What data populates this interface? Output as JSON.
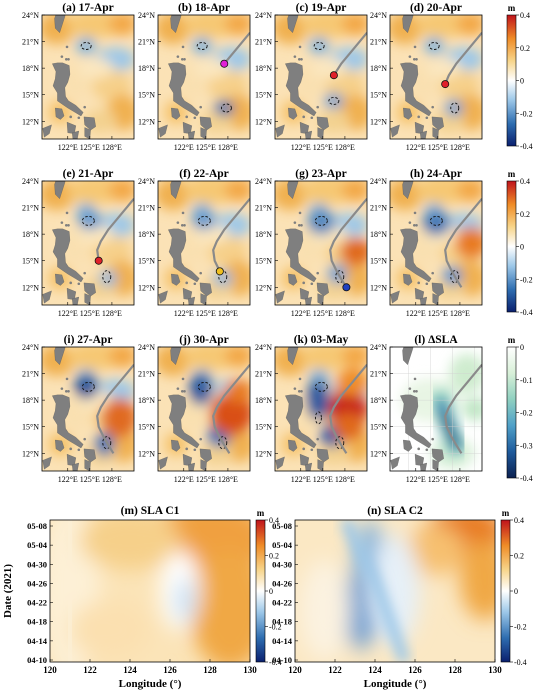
{
  "panels": [
    {
      "title": "(a) 17-Apr",
      "track_count": 0,
      "dot": null
    },
    {
      "title": "(b) 18-Apr",
      "track_count": 3,
      "dot": "#e020d8"
    },
    {
      "title": "(c) 19-Apr",
      "track_count": 4,
      "dot": "#e0202a"
    },
    {
      "title": "(d) 20-Apr",
      "track_count": 5,
      "dot": "#e0202a"
    },
    {
      "title": "(e) 21-Apr",
      "track_count": 6,
      "dot": "#e0202a"
    },
    {
      "title": "(f) 22-Apr",
      "track_count": 7,
      "dot": "#f0c020"
    },
    {
      "title": "(g) 23-Apr",
      "track_count": 9,
      "dot": "#2040c0"
    },
    {
      "title": "(h) 24-Apr",
      "track_count": 9,
      "dot": null
    },
    {
      "title": "(i) 27-Apr",
      "track_count": 9,
      "dot": null
    },
    {
      "title": "(j) 30-Apr",
      "track_count": 9,
      "dot": null
    },
    {
      "title": "(k) 03-May",
      "track_count": 9,
      "dot": null
    },
    {
      "title": "(l) ΔSLA",
      "track_count": 9,
      "dot": null
    }
  ],
  "map_axes": {
    "lat_labels": [
      "24°N",
      "21°N",
      "18°N",
      "15°N",
      "12°N"
    ],
    "lon_labels": [
      "122°E",
      "125°E",
      "128°E"
    ]
  },
  "colorbar_div": {
    "unit": "m",
    "ticks": [
      "0.4",
      "0.2",
      "0",
      "-0.2",
      "-0.4"
    ]
  },
  "colorbar_seq": {
    "unit": "m",
    "ticks": [
      "0",
      "-0.1",
      "-0.2",
      "-0.3",
      "-0.4"
    ]
  },
  "hovmoller": {
    "panels": [
      {
        "title": "(m) SLA C1"
      },
      {
        "title": "(n) SLA C2"
      }
    ],
    "ylabel": "Date (2021)",
    "xlabel": "Longitude (°)",
    "y_ticks": [
      "05-08",
      "05-04",
      "04-30",
      "04-26",
      "04-22",
      "04-18",
      "04-14",
      "04-10"
    ],
    "x_ticks": [
      "120",
      "122",
      "124",
      "126",
      "128",
      "130"
    ]
  },
  "track": [
    [
      131,
      22
    ],
    [
      129,
      20
    ],
    [
      127.5,
      18.5
    ],
    [
      126.5,
      17.2
    ],
    [
      126,
      16.2
    ],
    [
      126.2,
      15
    ],
    [
      126.9,
      13.8
    ],
    [
      127.6,
      12.8
    ],
    [
      128.2,
      12
    ]
  ],
  "colors": {
    "land": "#7f7f7f",
    "track": "#8a8a8a",
    "div_stops": [
      "#0a1f6e",
      "#2e6db0",
      "#9cc7e8",
      "#ffffff",
      "#f7d58a",
      "#ef8c27",
      "#c0131c"
    ],
    "seq_stops": [
      "#0b2050",
      "#1e5a9c",
      "#4fa0c8",
      "#8fd0c0",
      "#d8f0d8",
      "#ffffff"
    ]
  }
}
